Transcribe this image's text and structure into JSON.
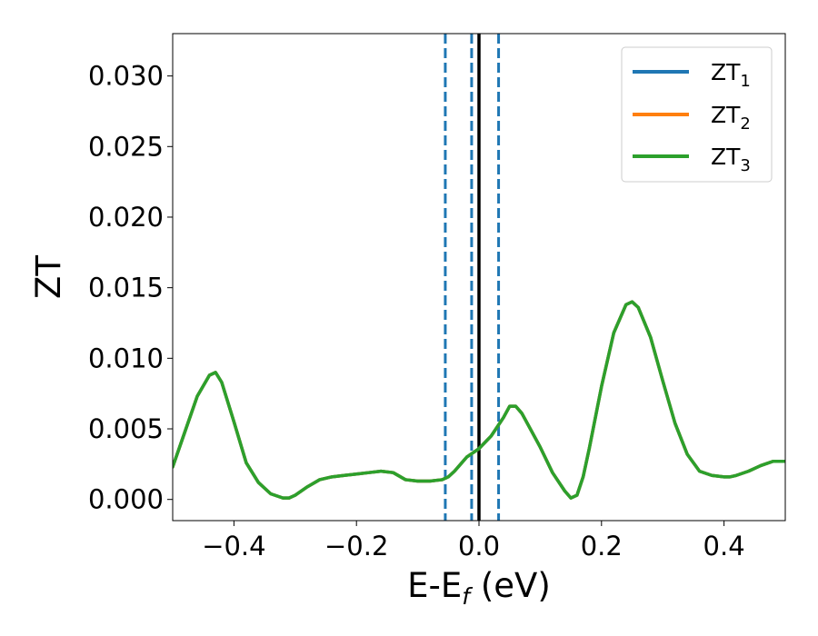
{
  "chart_data": {
    "type": "line",
    "xlabel": "E-E",
    "xlabel_subscript": "f",
    "xlabel_unit": " (eV)",
    "ylabel": "ZT",
    "xlim": [
      -0.5,
      0.5
    ],
    "ylim": [
      -0.0015,
      0.033
    ],
    "x_ticks": [
      -0.4,
      -0.2,
      0.0,
      0.2,
      0.4
    ],
    "x_tick_labels": [
      "−0.4",
      "−0.2",
      "0.0",
      "0.2",
      "0.4"
    ],
    "y_ticks": [
      0.0,
      0.005,
      0.01,
      0.015,
      0.02,
      0.025,
      0.03
    ],
    "y_tick_labels": [
      "0.000",
      "0.005",
      "0.010",
      "0.015",
      "0.020",
      "0.025",
      "0.030"
    ],
    "grid": false,
    "legend_position": "top-right",
    "series": [
      {
        "name": "ZT",
        "subscript": "1",
        "color": "#1f77b4"
      },
      {
        "name": "ZT",
        "subscript": "2",
        "color": "#ff7f0e"
      },
      {
        "name": "ZT",
        "subscript": "3",
        "color": "#2ca02c"
      }
    ],
    "x": [
      -0.5,
      -0.48,
      -0.46,
      -0.44,
      -0.43,
      -0.42,
      -0.4,
      -0.38,
      -0.36,
      -0.34,
      -0.32,
      -0.31,
      -0.3,
      -0.28,
      -0.26,
      -0.24,
      -0.22,
      -0.2,
      -0.18,
      -0.16,
      -0.14,
      -0.12,
      -0.1,
      -0.08,
      -0.06,
      -0.05,
      -0.04,
      -0.02,
      0.0,
      0.02,
      0.04,
      0.05,
      0.06,
      0.07,
      0.08,
      0.1,
      0.12,
      0.14,
      0.15,
      0.16,
      0.17,
      0.18,
      0.2,
      0.22,
      0.24,
      0.25,
      0.26,
      0.28,
      0.3,
      0.32,
      0.34,
      0.36,
      0.38,
      0.4,
      0.41,
      0.42,
      0.44,
      0.46,
      0.48,
      0.5
    ],
    "y": [
      0.0023,
      0.0048,
      0.0073,
      0.0088,
      0.009,
      0.0083,
      0.0055,
      0.0026,
      0.0012,
      0.0004,
      0.0001,
      0.0001,
      0.0003,
      0.0009,
      0.0014,
      0.0016,
      0.0017,
      0.0018,
      0.0019,
      0.002,
      0.0019,
      0.0014,
      0.0013,
      0.0013,
      0.0014,
      0.0016,
      0.002,
      0.003,
      0.0036,
      0.0045,
      0.0058,
      0.0066,
      0.0066,
      0.0061,
      0.0053,
      0.0037,
      0.0019,
      0.0006,
      0.0001,
      0.0003,
      0.0016,
      0.0036,
      0.008,
      0.0118,
      0.0138,
      0.014,
      0.0136,
      0.0115,
      0.0084,
      0.0054,
      0.0032,
      0.002,
      0.0017,
      0.0016,
      0.0016,
      0.0017,
      0.002,
      0.0024,
      0.0027,
      0.0027
    ],
    "vlines": [
      {
        "x": 0.0,
        "style": "solid",
        "color": "#000000"
      },
      {
        "x": -0.055,
        "style": "dashed",
        "color": "#1f77b4"
      },
      {
        "x": -0.012,
        "style": "dashed",
        "color": "#1f77b4"
      },
      {
        "x": 0.032,
        "style": "dashed",
        "color": "#1f77b4"
      }
    ]
  }
}
